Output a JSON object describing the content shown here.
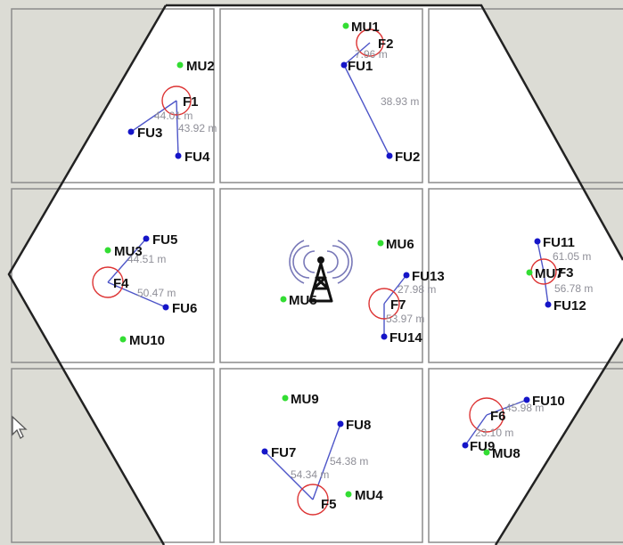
{
  "colors": {
    "outside": "#dcdcd5",
    "cell_border": "#8c8c8c",
    "hexagon": "#222222",
    "macro_user": "#33dd33",
    "femto_user": "#1515c8",
    "femto_circle": "#dd3333",
    "link": "#4d55c8",
    "tower": "#111111",
    "tower_waves": "#7878b8"
  },
  "icons": {
    "base_station": "cell-tower-icon",
    "pointer": "mouse-cursor-icon"
  },
  "macro_users": [
    {
      "label": "MU1"
    },
    {
      "label": "MU2"
    },
    {
      "label": "MU3"
    },
    {
      "label": "MU4"
    },
    {
      "label": "MU5"
    },
    {
      "label": "MU6"
    },
    {
      "label": "MU7"
    },
    {
      "label": "MU8"
    },
    {
      "label": "MU9"
    },
    {
      "label": "MU10"
    }
  ],
  "femtocells": [
    {
      "label": "F1"
    },
    {
      "label": "F2"
    },
    {
      "label": "F3"
    },
    {
      "label": "F4"
    },
    {
      "label": "F5"
    },
    {
      "label": "F6"
    },
    {
      "label": "F7"
    }
  ],
  "femto_users": [
    {
      "label": "FU1"
    },
    {
      "label": "FU2"
    },
    {
      "label": "FU3"
    },
    {
      "label": "FU4"
    },
    {
      "label": "FU5"
    },
    {
      "label": "FU6"
    },
    {
      "label": "FU7"
    },
    {
      "label": "FU8"
    },
    {
      "label": "FU9"
    },
    {
      "label": "FU10"
    },
    {
      "label": "FU11"
    },
    {
      "label": "FU12"
    },
    {
      "label": "FU13"
    },
    {
      "label": "FU14"
    }
  ],
  "links": [
    {
      "from": "F2",
      "to": "FU1",
      "distance": "7.96 m"
    },
    {
      "from": "FU1",
      "to": "FU2",
      "distance": "38.93 m"
    },
    {
      "from": "F1",
      "to": "FU3",
      "distance": "44.01 m"
    },
    {
      "from": "F1",
      "to": "FU4",
      "distance": "43.92 m"
    },
    {
      "from": "F4",
      "to": "FU5",
      "distance": "44.51 m"
    },
    {
      "from": "F4",
      "to": "FU6",
      "distance": "50.47 m"
    },
    {
      "from": "F7",
      "to": "FU13",
      "distance": "27.98 m"
    },
    {
      "from": "F7",
      "to": "FU14",
      "distance": "53.97 m"
    },
    {
      "from": "F3",
      "to": "FU11",
      "distance": "61.05 m"
    },
    {
      "from": "F3",
      "to": "FU12",
      "distance": "56.78 m"
    },
    {
      "from": "F6",
      "to": "FU10",
      "distance": "45.98 m"
    },
    {
      "from": "F6",
      "to": "FU9",
      "distance": "23.10 m"
    },
    {
      "from": "F5",
      "to": "FU7",
      "distance": "54.34 m"
    },
    {
      "from": "F5",
      "to": "FU8",
      "distance": "54.38 m"
    }
  ]
}
